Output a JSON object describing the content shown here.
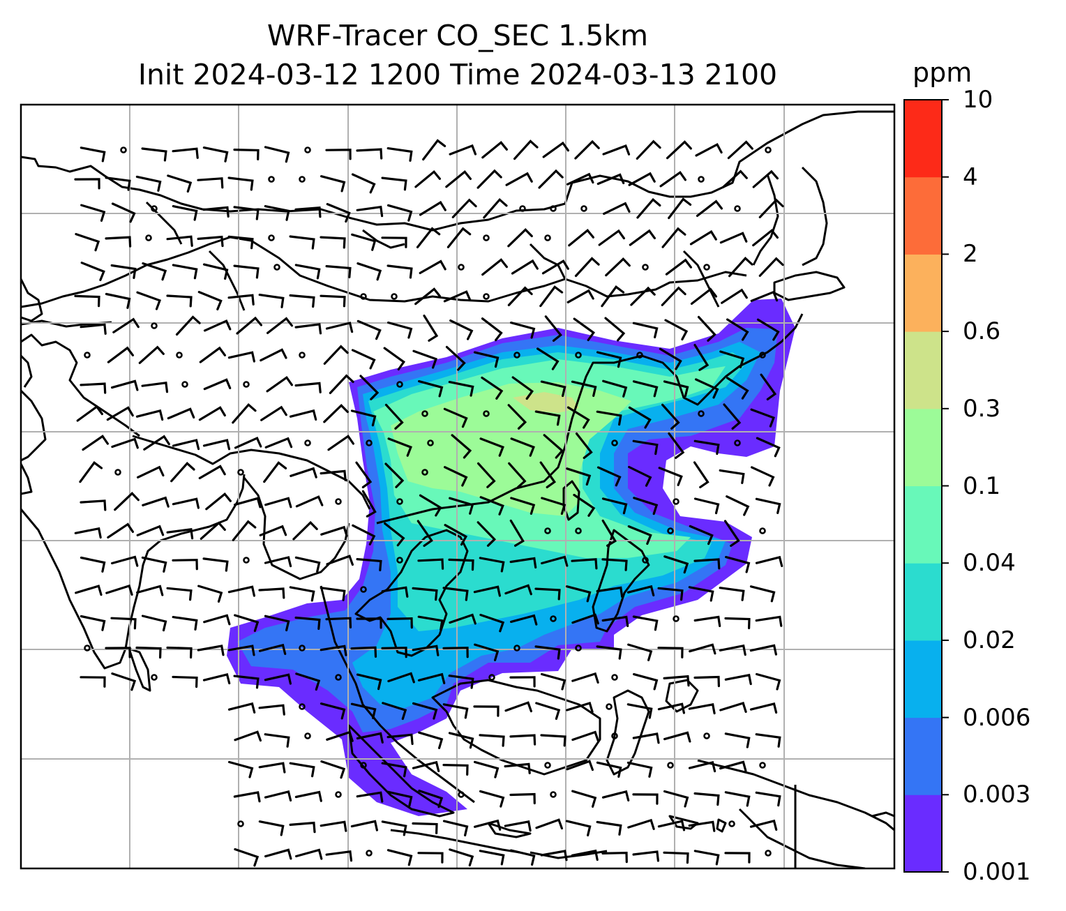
{
  "title": {
    "line1": "WRF-Tracer CO_SEC 1.5km",
    "line2": "Init 2024-03-12 1200 Time 2024-03-13 2100"
  },
  "colorbar": {
    "unit": "ppm",
    "levels": [
      "0.001",
      "0.003",
      "0.006",
      "0.02",
      "0.04",
      "0.1",
      "0.3",
      "0.6",
      "2",
      "4",
      "10"
    ],
    "colors": [
      "#6a2cff",
      "#3475f5",
      "#08b0ee",
      "#2bdccf",
      "#68f8b9",
      "#9cfb98",
      "#cde38a",
      "#fcb15c",
      "#fd6c39",
      "#fd2a18"
    ]
  },
  "map": {
    "gridlines": true,
    "wind_barbs": true,
    "coastlines": true
  },
  "chart_data": {
    "type": "heatmap",
    "title": "WRF-Tracer CO_SEC 1.5km Init 2024-03-12 1200 Time 2024-03-13 2100",
    "colorbar_label": "ppm",
    "colorbar_levels": [
      0.001,
      0.003,
      0.006,
      0.02,
      0.04,
      0.1,
      0.3,
      0.6,
      2,
      4,
      10
    ],
    "grid": true,
    "overlay": "wind barbs"
  }
}
